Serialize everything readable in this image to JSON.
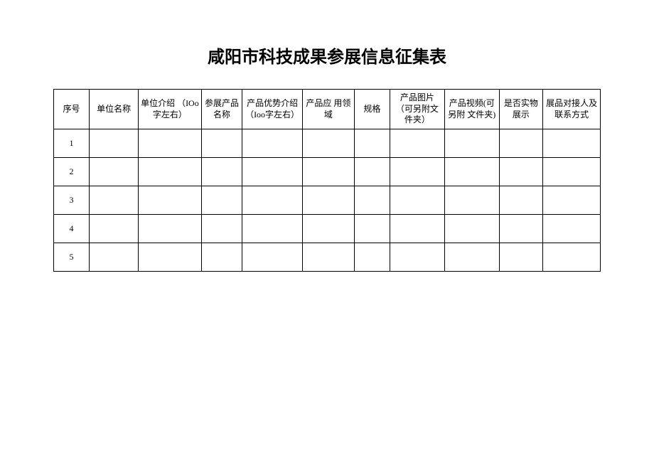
{
  "title": "咸阳市科技成果参展信息征集表",
  "table": {
    "columns": [
      "序号",
      "单位名称",
      "单位介绍 （IOo字左右）",
      "参展产品名称",
      "产品优势介绍（Ioo字左右）",
      "产品应 用领域",
      "规格",
      "产品图片（可另附文件夹）",
      "产品视频(可另附 文件夹)",
      "是否实物展示",
      "展品对接人及联系方式"
    ],
    "rows": [
      [
        "1",
        "",
        "",
        "",
        "",
        "",
        "",
        "",
        "",
        "",
        ""
      ],
      [
        "2",
        "",
        "",
        "",
        "",
        "",
        "",
        "",
        "",
        "",
        ""
      ],
      [
        "3",
        "",
        "",
        "",
        "",
        "",
        "",
        "",
        "",
        "",
        ""
      ],
      [
        "4",
        "",
        "",
        "",
        "",
        "",
        "",
        "",
        "",
        "",
        ""
      ],
      [
        "5",
        "",
        "",
        "",
        "",
        "",
        "",
        "",
        "",
        "",
        ""
      ]
    ]
  },
  "styling": {
    "title_fontsize": 24,
    "cell_fontsize": 12,
    "border_color": "#000000",
    "text_color": "#000000",
    "background_color": "#ffffff",
    "header_row_height": 56,
    "data_row_height": 40
  }
}
